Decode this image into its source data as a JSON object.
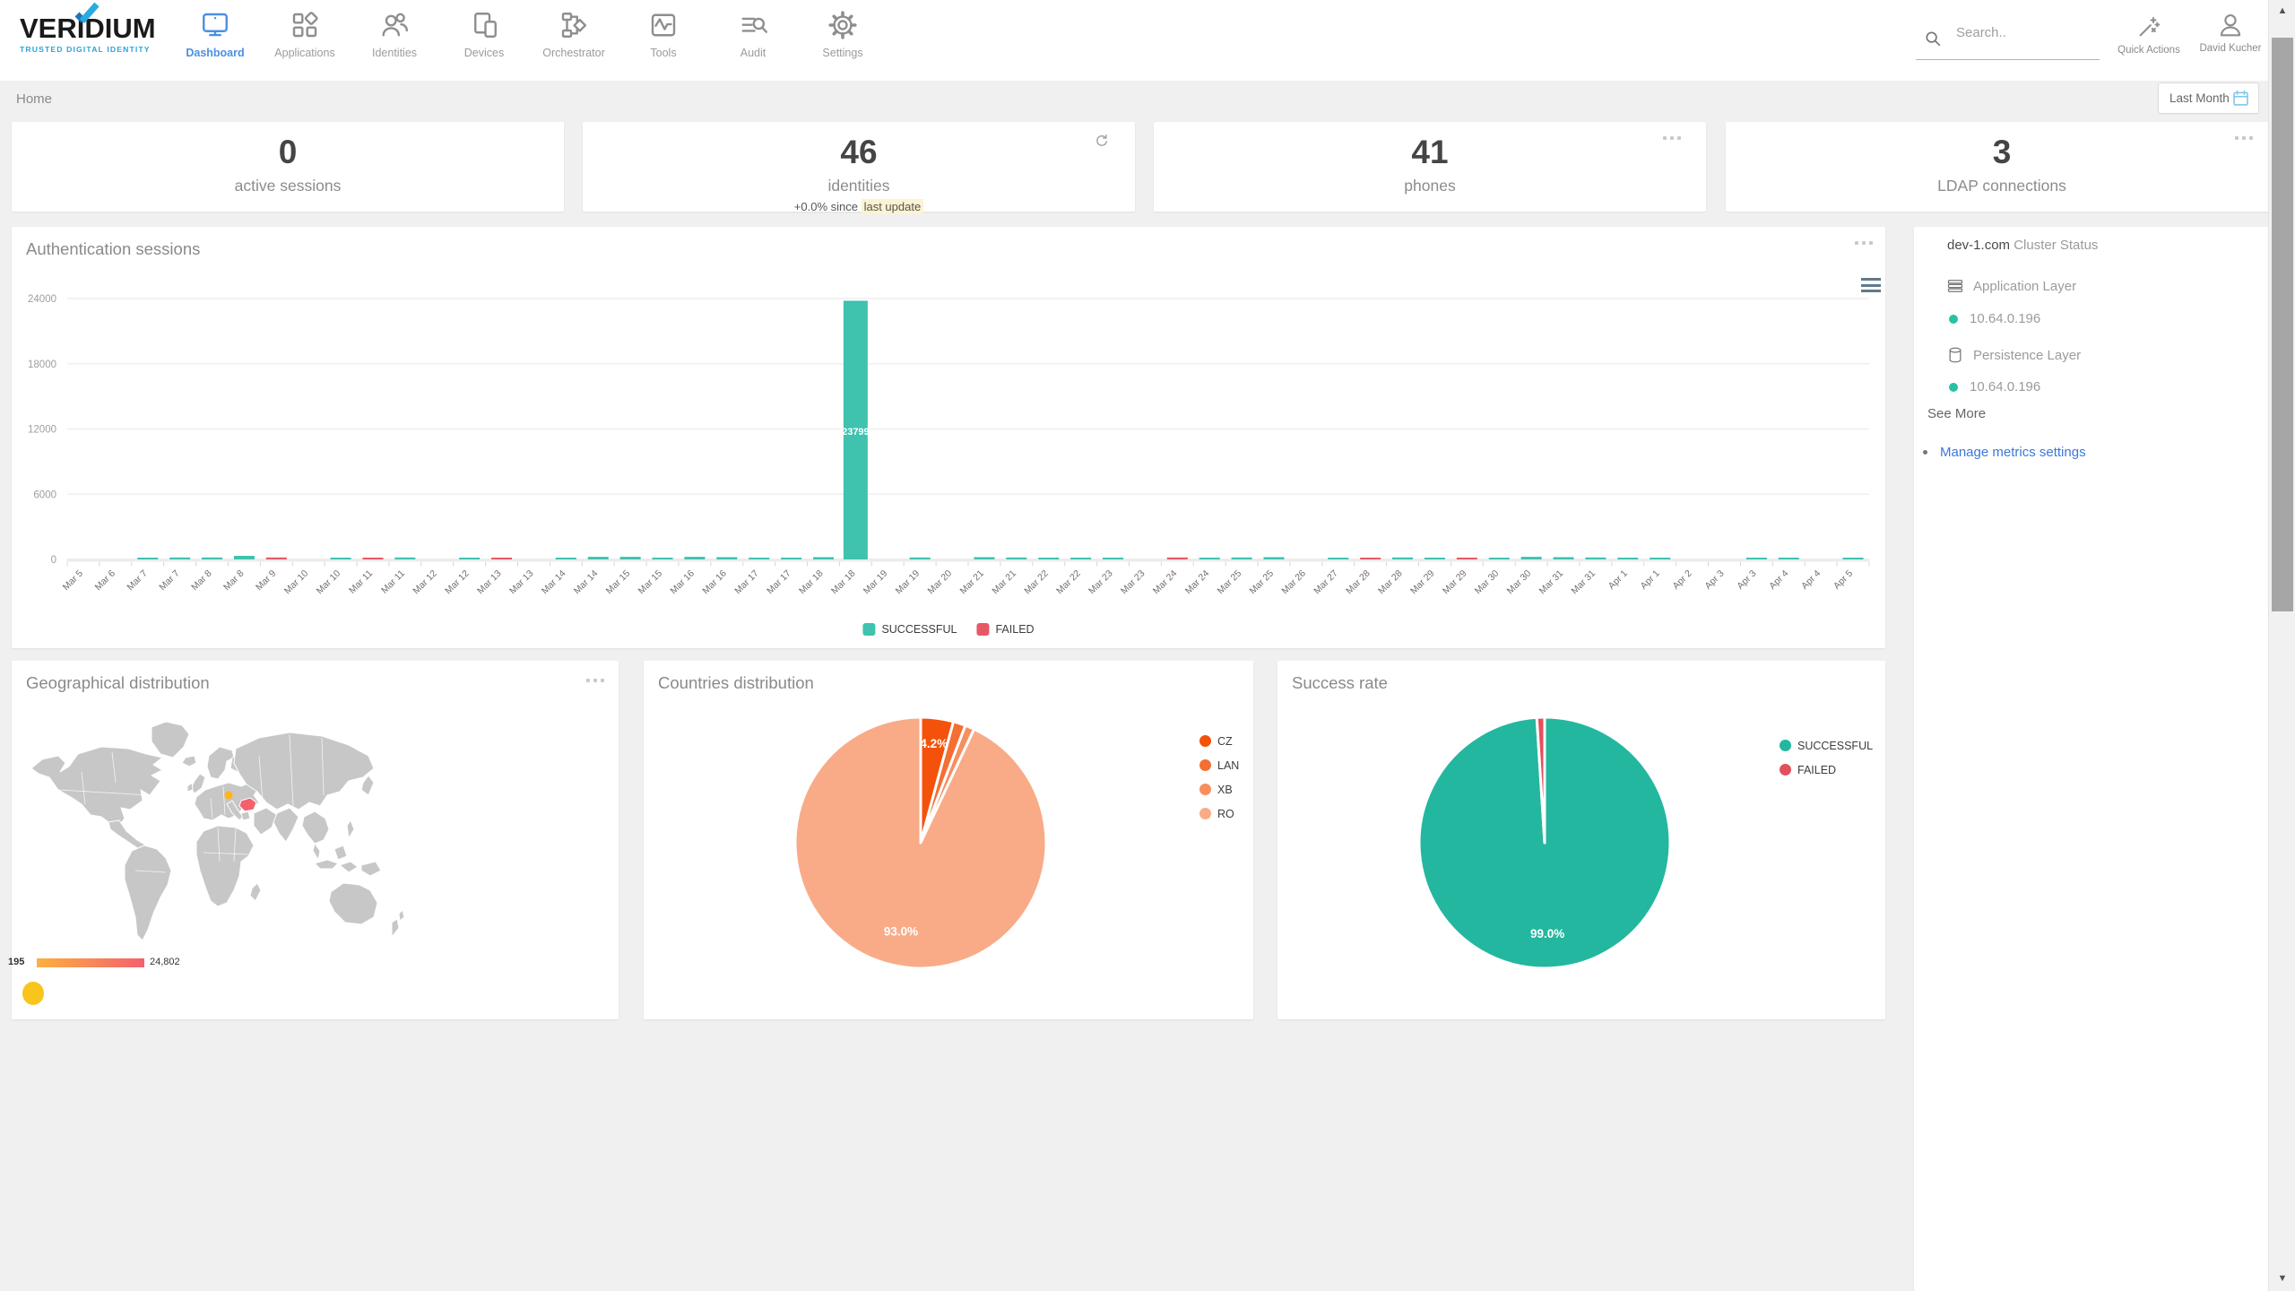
{
  "brand": {
    "name": "VERIDIUM",
    "tagline": "TRUSTED DIGITAL IDENTITY",
    "check_dark": "#1b75bc",
    "check_light": "#29abe2"
  },
  "nav": {
    "items": [
      {
        "id": "dashboard",
        "label": "Dashboard",
        "active": true
      },
      {
        "id": "applications",
        "label": "Applications",
        "active": false
      },
      {
        "id": "identities",
        "label": "Identities",
        "active": false
      },
      {
        "id": "devices",
        "label": "Devices",
        "active": false
      },
      {
        "id": "orchestrator",
        "label": "Orchestrator",
        "active": false
      },
      {
        "id": "tools",
        "label": "Tools",
        "active": false
      },
      {
        "id": "audit",
        "label": "Audit",
        "active": false
      },
      {
        "id": "settings",
        "label": "Settings",
        "active": false
      }
    ]
  },
  "topbar": {
    "search_placeholder": "Search..",
    "quick_actions_label": "Quick Actions",
    "user_name": "David Kucher"
  },
  "breadcrumb": {
    "home": "Home"
  },
  "period_selector": {
    "label": "Last Month"
  },
  "stat_cards": [
    {
      "value": "0",
      "label": "active sessions"
    },
    {
      "value": "46",
      "label": "identities",
      "delta_prefix": "+0.0% since",
      "delta_highlight": "last update"
    },
    {
      "value": "41",
      "label": "phones"
    },
    {
      "value": "3",
      "label": "LDAP connections"
    }
  ],
  "cluster_panel": {
    "host": "dev-1.com",
    "title": "Cluster Status",
    "sections": [
      {
        "icon": "layers",
        "label": "Application Layer",
        "nodes": [
          {
            "ip": "10.64.0.196",
            "status_color": "#26c2a3"
          }
        ]
      },
      {
        "icon": "database",
        "label": "Persistence Layer",
        "nodes": [
          {
            "ip": "10.64.0.196",
            "status_color": "#26c2a3"
          }
        ]
      }
    ],
    "see_more": "See More",
    "manage_link": "Manage metrics settings",
    "link_color": "#3b78d8"
  },
  "chart_data": [
    {
      "id": "auth_sessions",
      "type": "bar",
      "title": "Authentication sessions",
      "ylim": [
        0,
        24000
      ],
      "yticks": [
        0,
        6000,
        12000,
        18000,
        24000
      ],
      "grid": true,
      "legend_position": "bottom",
      "categories": [
        "Mar 5",
        "Mar 6",
        "Mar 7",
        "Mar 7",
        "Mar 8",
        "Mar 8",
        "Mar 9",
        "Mar 10",
        "Mar 10",
        "Mar 11",
        "Mar 11",
        "Mar 12",
        "Mar 12",
        "Mar 13",
        "Mar 13",
        "Mar 14",
        "Mar 14",
        "Mar 15",
        "Mar 15",
        "Mar 16",
        "Mar 16",
        "Mar 17",
        "Mar 17",
        "Mar 18",
        "Mar 18",
        "Mar 19",
        "Mar 19",
        "Mar 20",
        "Mar 21",
        "Mar 21",
        "Mar 22",
        "Mar 22",
        "Mar 23",
        "Mar 23",
        "Mar 24",
        "Mar 24",
        "Mar 25",
        "Mar 25",
        "Mar 26",
        "Mar 27",
        "Mar 28",
        "Mar 28",
        "Mar 29",
        "Mar 29",
        "Mar 30",
        "Mar 30",
        "Mar 31",
        "Mar 31",
        "Apr 1",
        "Apr 1",
        "Apr 2",
        "Apr 3",
        "Apr 3",
        "Apr 4",
        "Apr 4",
        "Apr 5"
      ],
      "series": [
        {
          "name": "SUCCESSFUL",
          "color": "#3fc2ae",
          "values": [
            0,
            0,
            150,
            180,
            180,
            330,
            0,
            0,
            120,
            0,
            180,
            0,
            150,
            0,
            0,
            90,
            240,
            240,
            150,
            240,
            210,
            120,
            90,
            210,
            23799,
            0,
            180,
            0,
            210,
            180,
            150,
            90,
            150,
            0,
            0,
            150,
            180,
            210,
            0,
            90,
            0,
            180,
            150,
            0,
            120,
            240,
            210,
            180,
            150,
            120,
            0,
            0,
            90,
            120,
            0,
            60
          ]
        },
        {
          "name": "FAILED",
          "color": "#e65964",
          "values": [
            0,
            0,
            0,
            0,
            0,
            0,
            180,
            0,
            0,
            120,
            0,
            0,
            0,
            120,
            0,
            0,
            0,
            0,
            0,
            0,
            0,
            0,
            0,
            0,
            0,
            0,
            0,
            0,
            0,
            0,
            0,
            0,
            0,
            0,
            180,
            0,
            0,
            0,
            0,
            0,
            150,
            0,
            0,
            90,
            0,
            0,
            0,
            0,
            0,
            0,
            0,
            0,
            0,
            0,
            0,
            0
          ]
        }
      ],
      "annotated_bar": {
        "category_index": 24,
        "series": "SUCCESSFUL",
        "value_label": "23799"
      }
    },
    {
      "id": "geo",
      "type": "map",
      "title": "Geographical distribution",
      "scale_min_label": "195",
      "scale_max_label": "24,802",
      "scale_colors": [
        "#fbb040",
        "#f4616e"
      ],
      "highlight_country": "RO",
      "highlight_color": "#f4606c",
      "marker_color": "#f9c51c",
      "map_dot_color": "#ffb612"
    },
    {
      "id": "countries",
      "type": "pie",
      "title": "Countries distribution",
      "legend_position": "right",
      "slices": [
        {
          "name": "CZ",
          "value": 4.2,
          "color": "#f4520b",
          "label": "4.2%"
        },
        {
          "name": "LAN",
          "value": 1.6,
          "color": "#f36f33",
          "label": ""
        },
        {
          "name": "XB",
          "value": 1.2,
          "color": "#f78e5e",
          "label": ""
        },
        {
          "name": "RO",
          "value": 93.0,
          "color": "#f9ab87",
          "label": "93.0%"
        }
      ]
    },
    {
      "id": "success_rate",
      "type": "pie",
      "title": "Success rate",
      "legend_position": "right",
      "slices": [
        {
          "name": "SUCCESSFUL",
          "value": 99.0,
          "color": "#24b7a0",
          "label": "99.0%"
        },
        {
          "name": "FAILED",
          "value": 1.0,
          "color": "#e3505c",
          "label": ""
        }
      ]
    }
  ],
  "colors": {
    "page_bg": "#f0f0f1",
    "card_bg": "#ffffff",
    "teal": "#3fc2ae",
    "red": "#e65964",
    "active_nav": "#4a90e2"
  }
}
